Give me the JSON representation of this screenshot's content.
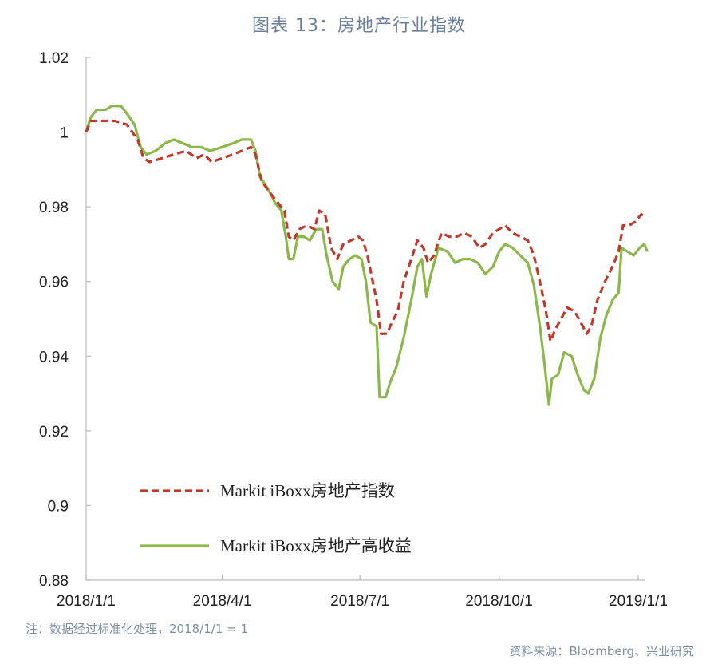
{
  "title": "图表 13：房地产行业指数",
  "note": "注：数据经过标准化处理，2018/1/1 = 1",
  "source": "资料来源：Bloomberg、兴业研究",
  "chart_data": {
    "type": "line",
    "ylim": [
      0.88,
      1.02
    ],
    "yticks": [
      "1.02",
      "1",
      "0.98",
      "0.96",
      "0.94",
      "0.92",
      "0.9",
      "0.88"
    ],
    "xticks": [
      "2018/1/1",
      "2018/4/1",
      "2018/7/1",
      "2018/10/1",
      "2019/1/1"
    ],
    "legend_position": "lower-left",
    "grid": false,
    "series": [
      {
        "name": "Markit iBoxx房地产指数",
        "color": "#c0392b",
        "style": "dashed",
        "points": [
          [
            "2018-01-01",
            1.0
          ],
          [
            "2018-01-04",
            1.003
          ],
          [
            "2018-01-10",
            1.003
          ],
          [
            "2018-01-20",
            1.003
          ],
          [
            "2018-01-28",
            1.002
          ],
          [
            "2018-02-04",
            0.998
          ],
          [
            "2018-02-08",
            0.993
          ],
          [
            "2018-02-12",
            0.992
          ],
          [
            "2018-02-20",
            0.993
          ],
          [
            "2018-02-28",
            0.994
          ],
          [
            "2018-03-08",
            0.995
          ],
          [
            "2018-03-15",
            0.993
          ],
          [
            "2018-03-20",
            0.994
          ],
          [
            "2018-03-25",
            0.992
          ],
          [
            "2018-04-01",
            0.993
          ],
          [
            "2018-04-08",
            0.994
          ],
          [
            "2018-04-14",
            0.995
          ],
          [
            "2018-04-20",
            0.996
          ],
          [
            "2018-04-23",
            0.994
          ],
          [
            "2018-04-27",
            0.987
          ],
          [
            "2018-05-02",
            0.984
          ],
          [
            "2018-05-08",
            0.981
          ],
          [
            "2018-05-12",
            0.979
          ],
          [
            "2018-05-15",
            0.972
          ],
          [
            "2018-05-18",
            0.971
          ],
          [
            "2018-05-22",
            0.974
          ],
          [
            "2018-05-27",
            0.975
          ],
          [
            "2018-06-01",
            0.974
          ],
          [
            "2018-06-04",
            0.979
          ],
          [
            "2018-06-08",
            0.978
          ],
          [
            "2018-06-12",
            0.969
          ],
          [
            "2018-06-16",
            0.966
          ],
          [
            "2018-06-20",
            0.97
          ],
          [
            "2018-06-25",
            0.971
          ],
          [
            "2018-06-30",
            0.972
          ],
          [
            "2018-07-03",
            0.971
          ],
          [
            "2018-07-06",
            0.967
          ],
          [
            "2018-07-09",
            0.961
          ],
          [
            "2018-07-12",
            0.955
          ],
          [
            "2018-07-15",
            0.946
          ],
          [
            "2018-07-19",
            0.946
          ],
          [
            "2018-07-22",
            0.949
          ],
          [
            "2018-07-26",
            0.952
          ],
          [
            "2018-07-30",
            0.96
          ],
          [
            "2018-08-04",
            0.966
          ],
          [
            "2018-08-08",
            0.971
          ],
          [
            "2018-08-12",
            0.969
          ],
          [
            "2018-08-15",
            0.965
          ],
          [
            "2018-08-19",
            0.967
          ],
          [
            "2018-08-24",
            0.973
          ],
          [
            "2018-08-29",
            0.972
          ],
          [
            "2018-09-03",
            0.972
          ],
          [
            "2018-09-08",
            0.973
          ],
          [
            "2018-09-13",
            0.972
          ],
          [
            "2018-09-18",
            0.969
          ],
          [
            "2018-09-22",
            0.97
          ],
          [
            "2018-09-27",
            0.973
          ],
          [
            "2018-10-01",
            0.974
          ],
          [
            "2018-10-05",
            0.975
          ],
          [
            "2018-10-10",
            0.973
          ],
          [
            "2018-10-15",
            0.972
          ],
          [
            "2018-10-20",
            0.971
          ],
          [
            "2018-10-24",
            0.967
          ],
          [
            "2018-10-28",
            0.96
          ],
          [
            "2018-11-01",
            0.952
          ],
          [
            "2018-11-04",
            0.944
          ],
          [
            "2018-11-07",
            0.947
          ],
          [
            "2018-11-11",
            0.95
          ],
          [
            "2018-11-15",
            0.953
          ],
          [
            "2018-11-20",
            0.952
          ],
          [
            "2018-11-24",
            0.949
          ],
          [
            "2018-11-28",
            0.946
          ],
          [
            "2018-12-01",
            0.948
          ],
          [
            "2018-12-05",
            0.955
          ],
          [
            "2018-12-10",
            0.96
          ],
          [
            "2018-12-15",
            0.964
          ],
          [
            "2018-12-19",
            0.968
          ],
          [
            "2018-12-22",
            0.975
          ],
          [
            "2018-12-26",
            0.975
          ],
          [
            "2018-12-30",
            0.976
          ],
          [
            "2019-01-03",
            0.978
          ],
          [
            "2019-01-06",
            0.977
          ]
        ]
      },
      {
        "name": "Markit iBoxx房地产高收益",
        "color": "#8cb84a",
        "style": "solid",
        "points": [
          [
            "2018-01-01",
            1.0
          ],
          [
            "2018-01-04",
            1.004
          ],
          [
            "2018-01-08",
            1.006
          ],
          [
            "2018-01-14",
            1.006
          ],
          [
            "2018-01-18",
            1.007
          ],
          [
            "2018-01-24",
            1.007
          ],
          [
            "2018-01-28",
            1.005
          ],
          [
            "2018-02-02",
            1.002
          ],
          [
            "2018-02-06",
            0.996
          ],
          [
            "2018-02-10",
            0.994
          ],
          [
            "2018-02-16",
            0.995
          ],
          [
            "2018-02-22",
            0.997
          ],
          [
            "2018-02-28",
            0.998
          ],
          [
            "2018-03-06",
            0.997
          ],
          [
            "2018-03-12",
            0.996
          ],
          [
            "2018-03-18",
            0.996
          ],
          [
            "2018-03-24",
            0.995
          ],
          [
            "2018-04-01",
            0.996
          ],
          [
            "2018-04-08",
            0.997
          ],
          [
            "2018-04-14",
            0.998
          ],
          [
            "2018-04-20",
            0.998
          ],
          [
            "2018-04-23",
            0.995
          ],
          [
            "2018-04-26",
            0.988
          ],
          [
            "2018-05-01",
            0.985
          ],
          [
            "2018-05-06",
            0.981
          ],
          [
            "2018-05-10",
            0.979
          ],
          [
            "2018-05-13",
            0.972
          ],
          [
            "2018-05-15",
            0.966
          ],
          [
            "2018-05-18",
            0.966
          ],
          [
            "2018-05-21",
            0.972
          ],
          [
            "2018-05-25",
            0.972
          ],
          [
            "2018-05-29",
            0.971
          ],
          [
            "2018-06-02",
            0.974
          ],
          [
            "2018-06-06",
            0.974
          ],
          [
            "2018-06-09",
            0.967
          ],
          [
            "2018-06-13",
            0.96
          ],
          [
            "2018-06-17",
            0.958
          ],
          [
            "2018-06-20",
            0.964
          ],
          [
            "2018-06-24",
            0.966
          ],
          [
            "2018-06-28",
            0.967
          ],
          [
            "2018-07-02",
            0.966
          ],
          [
            "2018-07-05",
            0.96
          ],
          [
            "2018-07-08",
            0.949
          ],
          [
            "2018-07-12",
            0.948
          ],
          [
            "2018-07-14",
            0.929
          ],
          [
            "2018-07-18",
            0.929
          ],
          [
            "2018-07-21",
            0.933
          ],
          [
            "2018-07-25",
            0.937
          ],
          [
            "2018-07-30",
            0.945
          ],
          [
            "2018-08-04",
            0.955
          ],
          [
            "2018-08-08",
            0.964
          ],
          [
            "2018-08-11",
            0.966
          ],
          [
            "2018-08-14",
            0.956
          ],
          [
            "2018-08-17",
            0.962
          ],
          [
            "2018-08-22",
            0.969
          ],
          [
            "2018-08-28",
            0.968
          ],
          [
            "2018-09-02",
            0.965
          ],
          [
            "2018-09-07",
            0.966
          ],
          [
            "2018-09-12",
            0.966
          ],
          [
            "2018-09-17",
            0.965
          ],
          [
            "2018-09-22",
            0.962
          ],
          [
            "2018-09-27",
            0.964
          ],
          [
            "2018-10-01",
            0.968
          ],
          [
            "2018-10-05",
            0.97
          ],
          [
            "2018-10-10",
            0.969
          ],
          [
            "2018-10-15",
            0.967
          ],
          [
            "2018-10-20",
            0.965
          ],
          [
            "2018-10-24",
            0.959
          ],
          [
            "2018-10-28",
            0.948
          ],
          [
            "2018-10-31",
            0.938
          ],
          [
            "2018-11-03",
            0.927
          ],
          [
            "2018-11-05",
            0.934
          ],
          [
            "2018-11-09",
            0.935
          ],
          [
            "2018-11-13",
            0.941
          ],
          [
            "2018-11-18",
            0.94
          ],
          [
            "2018-11-22",
            0.935
          ],
          [
            "2018-11-26",
            0.931
          ],
          [
            "2018-11-29",
            0.93
          ],
          [
            "2018-12-03",
            0.934
          ],
          [
            "2018-12-07",
            0.945
          ],
          [
            "2018-12-11",
            0.951
          ],
          [
            "2018-12-15",
            0.955
          ],
          [
            "2018-12-19",
            0.957
          ],
          [
            "2018-12-21",
            0.969
          ],
          [
            "2018-12-25",
            0.968
          ],
          [
            "2018-12-29",
            0.967
          ],
          [
            "2019-01-02",
            0.969
          ],
          [
            "2019-01-05",
            0.97
          ],
          [
            "2019-01-07",
            0.968
          ]
        ]
      }
    ]
  }
}
